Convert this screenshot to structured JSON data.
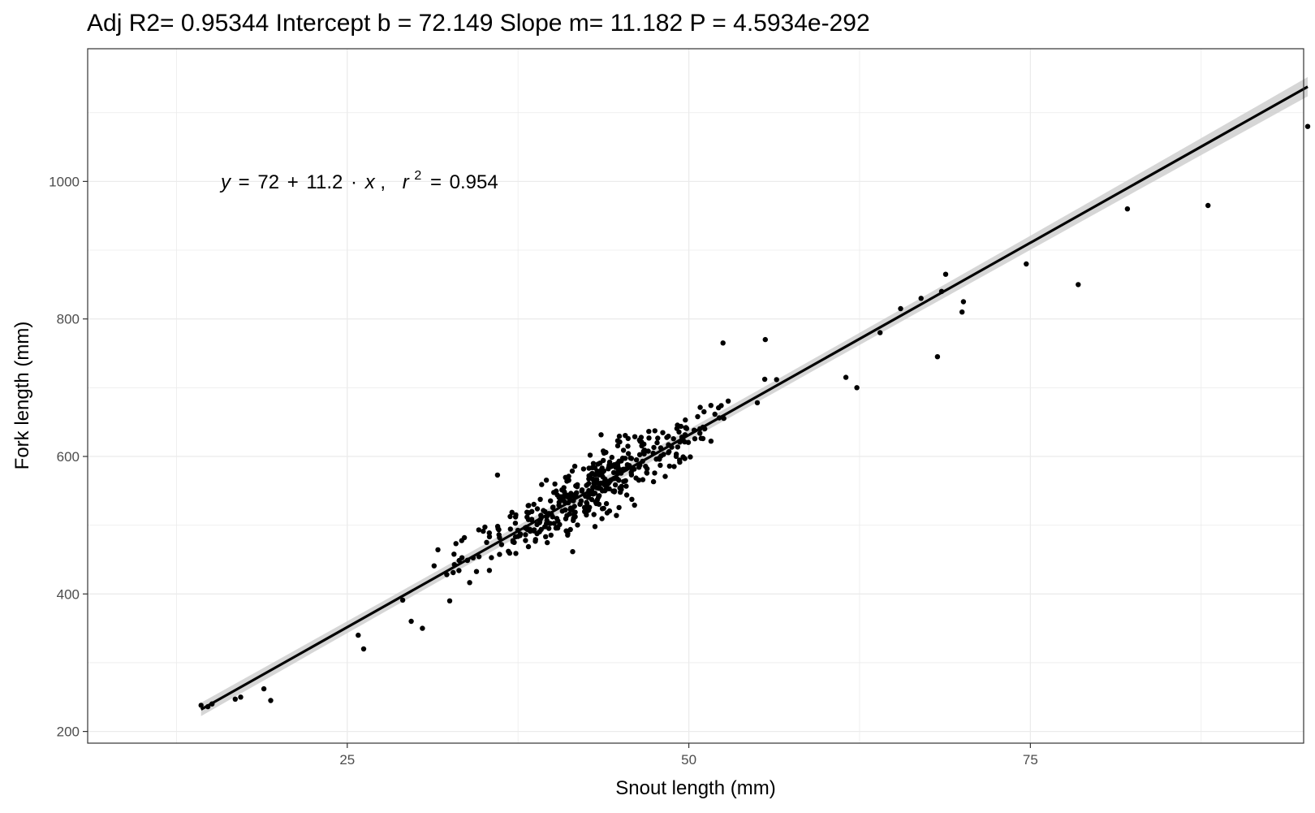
{
  "chart_data": {
    "type": "scatter",
    "title": "Adj R2=  0.95344 Intercept b =  72.149 Slope m=  11.182 P =  4.5934e-292",
    "xlabel": "Snout length (mm)",
    "ylabel": "Fork length (mm)",
    "xlim": [
      6,
      95
    ],
    "ylim": [
      183,
      1193
    ],
    "x_ticks": [
      25,
      50,
      75
    ],
    "y_ticks": [
      200,
      400,
      600,
      800,
      1000
    ],
    "grid": true,
    "legend": "none",
    "annotation": {
      "y_var": "y",
      "equals": "=",
      "intercept": "72",
      "plus": "+",
      "slope": "11.2",
      "dot": "·",
      "x_var": "x",
      "comma": ",",
      "r_var": "r",
      "r_exp": "2",
      "equals2": "=",
      "r2": "0.954"
    },
    "fit": {
      "intercept": 72.149,
      "slope": 11.182,
      "x_range": [
        14.3,
        95.3
      ],
      "band_halfwidth_low": 8,
      "band_halfwidth_high": 14
    },
    "colors": {
      "points": "#000000",
      "fit_line": "#000000",
      "band": "#cccccc",
      "grid": "#ebebeb",
      "panel_border": "#333333"
    },
    "outliers": [
      {
        "x": 14.3,
        "y": 238
      },
      {
        "x": 14.8,
        "y": 236
      },
      {
        "x": 15.1,
        "y": 240
      },
      {
        "x": 16.8,
        "y": 247
      },
      {
        "x": 17.2,
        "y": 250
      },
      {
        "x": 18.9,
        "y": 262
      },
      {
        "x": 19.4,
        "y": 245
      },
      {
        "x": 25.8,
        "y": 340
      },
      {
        "x": 26.2,
        "y": 320
      },
      {
        "x": 30.5,
        "y": 350
      },
      {
        "x": 32.5,
        "y": 390
      },
      {
        "x": 36.0,
        "y": 573
      },
      {
        "x": 40.2,
        "y": 560
      },
      {
        "x": 52.5,
        "y": 765
      },
      {
        "x": 55.6,
        "y": 770
      },
      {
        "x": 61.5,
        "y": 715
      },
      {
        "x": 62.3,
        "y": 700
      },
      {
        "x": 64.0,
        "y": 780
      },
      {
        "x": 65.5,
        "y": 815
      },
      {
        "x": 67.0,
        "y": 830
      },
      {
        "x": 68.2,
        "y": 745
      },
      {
        "x": 68.5,
        "y": 840
      },
      {
        "x": 68.8,
        "y": 865
      },
      {
        "x": 70.0,
        "y": 810
      },
      {
        "x": 70.1,
        "y": 825
      },
      {
        "x": 74.7,
        "y": 880
      },
      {
        "x": 78.5,
        "y": 850
      },
      {
        "x": 82.1,
        "y": 960
      },
      {
        "x": 88.0,
        "y": 965
      },
      {
        "x": 95.3,
        "y": 1080
      }
    ],
    "cluster": {
      "n": 430,
      "x_range": [
        24.5,
        60
      ],
      "x_mode": 44,
      "residual_sd": 22,
      "seed": 12345
    }
  }
}
